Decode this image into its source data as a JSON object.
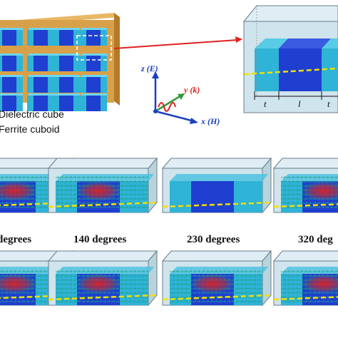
{
  "legend": {
    "dielectric_cube": "Dielectric cube",
    "ferrite_cuboid": "Ferrite cuboid"
  },
  "axes": {
    "z_label": "z (E)",
    "y_label": "y (k)",
    "x_label": "x (H)"
  },
  "dimensions": {
    "t_left": "t",
    "l": "l",
    "t_right": "t"
  },
  "angle_labels": [
    "degrees",
    "140 degrees",
    "230 degrees",
    "320 deg"
  ],
  "colors": {
    "plate": "#d9a04a",
    "dielectric": "#2fb3d6",
    "ferrite": "#1f3fd0",
    "box": "#cfe4ec",
    "dash": "#f0e000",
    "arrow": "#e02020",
    "field_hot": "#d82020"
  }
}
